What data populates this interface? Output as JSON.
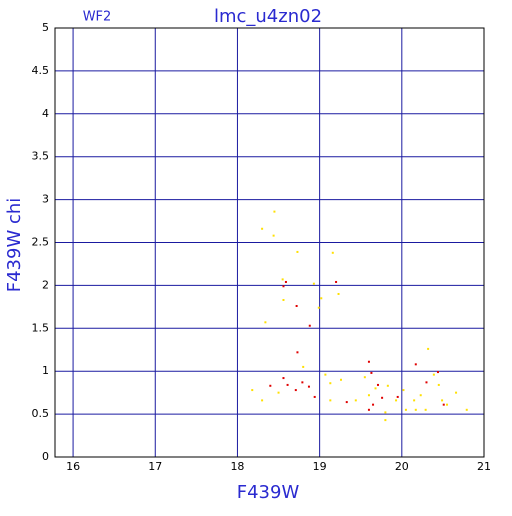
{
  "chart_data": {
    "type": "scatter",
    "title": "lmc_u4zn02",
    "annotation": "WF2",
    "x_label": "F439W",
    "y_label": "F439W chi",
    "xlim": [
      15.78,
      21
    ],
    "ylim": [
      0,
      5
    ],
    "xticks": [
      16,
      17,
      18,
      19,
      20,
      21
    ],
    "yticks": [
      0,
      0.5,
      1,
      1.5,
      2,
      2.5,
      3,
      3.5,
      4,
      4.5,
      5
    ],
    "grid": true,
    "grid_color": "#1a1aa0",
    "series": [
      {
        "color": "#ffe000",
        "x": [
          18.45,
          18.3,
          18.44,
          18.73,
          19.16,
          18.55,
          18.93,
          19.23,
          18.56,
          19.02,
          18.34,
          18.99,
          18.18,
          18.3,
          18.5,
          18.8,
          19.07,
          19.13,
          19.26,
          19.13,
          19.44,
          19.55,
          19.6,
          19.68,
          19.83,
          19.8,
          19.93,
          20.02,
          20.05,
          20.15,
          20.23,
          20.29,
          20.32,
          20.39,
          20.45,
          20.49,
          20.55,
          20.66,
          20.79,
          20.17,
          19.8
        ],
        "values": [
          2.86,
          2.66,
          2.58,
          2.39,
          2.38,
          2.07,
          2.02,
          1.9,
          1.83,
          1.85,
          1.57,
          1.74,
          0.78,
          0.66,
          0.75,
          1.05,
          0.96,
          0.86,
          0.9,
          0.66,
          0.66,
          0.93,
          0.72,
          0.8,
          0.83,
          0.52,
          0.66,
          0.78,
          0.55,
          0.66,
          0.72,
          0.55,
          1.26,
          0.96,
          0.84,
          0.66,
          0.61,
          0.75,
          0.55,
          0.55,
          0.43
        ]
      },
      {
        "color": "#e00000",
        "x": [
          18.56,
          18.59,
          19.2,
          18.72,
          18.88,
          18.73,
          18.4,
          18.56,
          18.61,
          18.71,
          18.79,
          18.87,
          18.94,
          19.33,
          19.6,
          19.63,
          19.6,
          19.71,
          19.76,
          19.95,
          20.17,
          20.44,
          20.3,
          20.51,
          19.65
        ],
        "values": [
          1.99,
          2.04,
          2.04,
          1.76,
          1.53,
          1.22,
          0.83,
          0.92,
          0.84,
          0.78,
          0.87,
          0.82,
          0.7,
          0.64,
          1.11,
          0.98,
          0.55,
          0.84,
          0.69,
          0.7,
          1.08,
          0.99,
          0.87,
          0.61,
          0.61
        ]
      }
    ]
  }
}
